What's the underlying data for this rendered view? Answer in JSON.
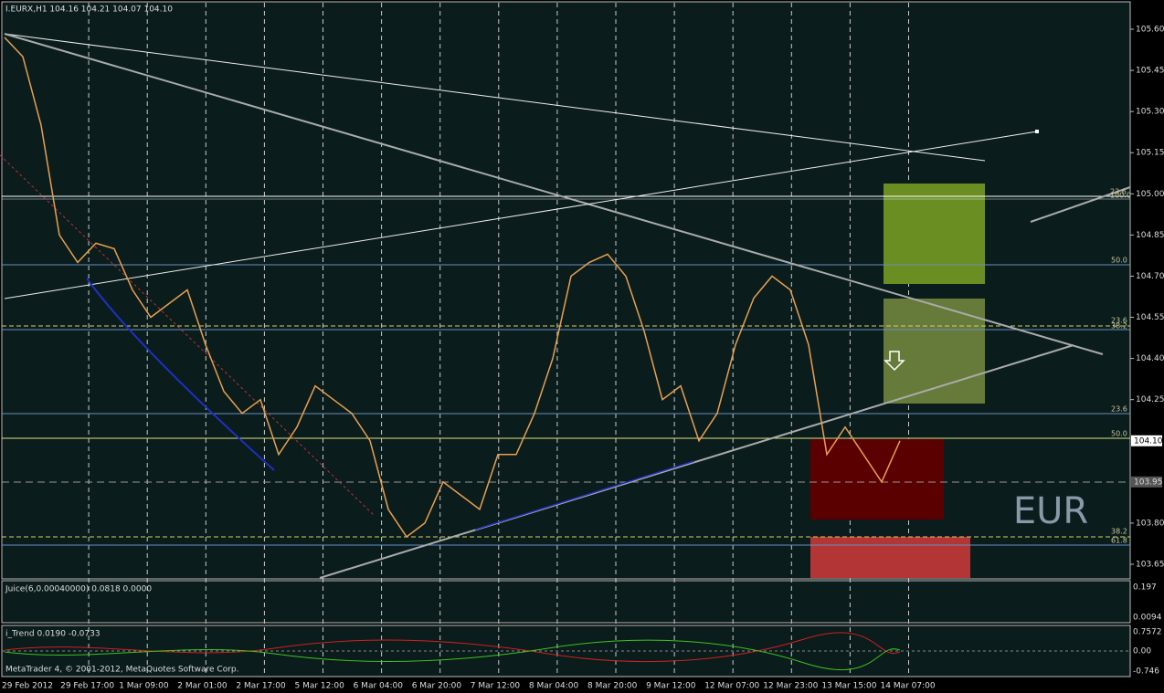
{
  "header": "I.EURX,H1  104.16 104.21 104.07 104.10",
  "watermark": "EUR",
  "copyright": "MetaTrader 4, © 2001-2012, MetaQuotes Software Corp.",
  "fib_labels": [
    "23.6",
    "100.0",
    "50.0",
    "23.6",
    "38.2",
    "23.6",
    "50.0",
    "38.2",
    "61.8"
  ],
  "chart_data": {
    "type": "line",
    "color": "#e8a050",
    "values": [
      105.57,
      105.5,
      105.25,
      104.85,
      104.75,
      104.82,
      104.8,
      104.65,
      104.55,
      104.6,
      104.65,
      104.45,
      104.28,
      104.2,
      104.25,
      104.05,
      104.15,
      104.3,
      104.25,
      104.2,
      104.1,
      103.85,
      103.75,
      103.8,
      103.95,
      103.9,
      103.85,
      104.05,
      104.05,
      104.2,
      104.4,
      104.7,
      104.75,
      104.78,
      104.7,
      104.5,
      104.25,
      104.3,
      104.1,
      104.2,
      104.45,
      104.62,
      104.7,
      104.65,
      104.45,
      104.05,
      104.15,
      104.05,
      103.95,
      104.1
    ],
    "ylim": [
      103.6,
      105.64
    ],
    "yticks": [
      {
        "value": 105.6,
        "label": "105.60"
      },
      {
        "value": 105.45,
        "label": "105.45"
      },
      {
        "value": 105.3,
        "label": "105.30"
      },
      {
        "value": 105.15,
        "label": "105.15"
      },
      {
        "value": 105.0,
        "label": "105.00"
      },
      {
        "value": 104.85,
        "label": "104.85"
      },
      {
        "value": 104.7,
        "label": "104.70"
      },
      {
        "value": 104.55,
        "label": "104.55"
      },
      {
        "value": 104.4,
        "label": "104.40"
      },
      {
        "value": 104.25,
        "label": "104.25"
      },
      {
        "value": 103.8,
        "label": "103.80"
      },
      {
        "value": 103.65,
        "label": "103.65"
      }
    ],
    "current_price": {
      "value": 104.1,
      "label": "104.10"
    },
    "marker_price": {
      "value": 103.95,
      "label": "103.95"
    },
    "time_labels": [
      "29 Feb 2012",
      "29 Feb 17:00",
      "1 Mar 09:00",
      "2 Mar 01:00",
      "2 Mar 17:00",
      "5 Mar 12:00",
      "6 Mar 04:00",
      "6 Mar 20:00",
      "7 Mar 12:00",
      "8 Mar 04:00",
      "8 Mar 20:00",
      "9 Mar 12:00",
      "12 Mar 07:00",
      "12 Mar 23:00",
      "13 Mar 15:00",
      "14 Mar 07:00"
    ]
  },
  "indicators": [
    {
      "label": "Juice(6,0.00040000) 0.0818 0.0000",
      "ticks": [
        "0.197",
        "0.0094"
      ]
    },
    {
      "label": "i_Trend 0.0190 -0.0733",
      "ticks": [
        "0.7572",
        "0.00",
        "-0.746"
      ]
    }
  ]
}
